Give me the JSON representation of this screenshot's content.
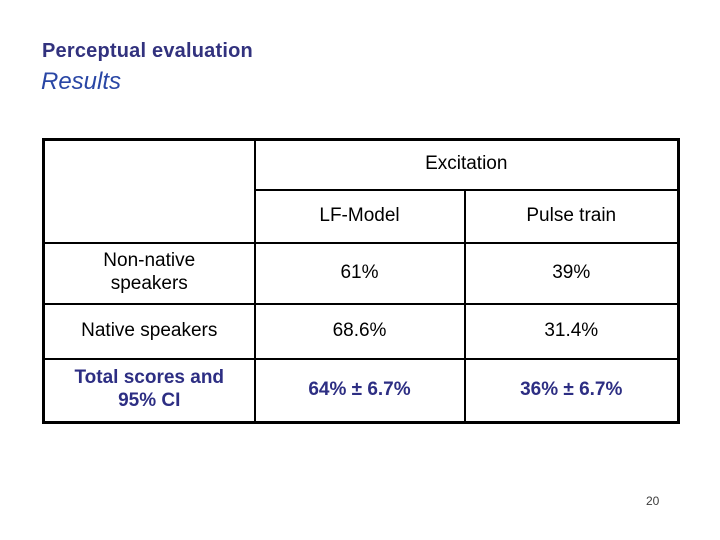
{
  "slide": {
    "kicker": "Perceptual evaluation",
    "title": "Results",
    "page_number": "20"
  },
  "table": {
    "header": {
      "group": "Excitation",
      "columns": [
        "LF-Model",
        "Pulse train"
      ]
    },
    "rows": [
      {
        "label": "Non-native\nspeakers",
        "lf_model": "61%",
        "pulse_train": "39%",
        "emphasis": false
      },
      {
        "label": "Native speakers",
        "lf_model": "68.6%",
        "pulse_train": "31.4%",
        "emphasis": false
      },
      {
        "label": "Total scores and\n95% CI",
        "lf_model": "64% ± 6.7%",
        "pulse_train": "36% ± 6.7%",
        "emphasis": true
      }
    ]
  },
  "colors": {
    "kicker_text": "#32327e",
    "title_text": "#2946a5",
    "emphasis_text": "#2d2e83",
    "table_text": "#000000",
    "table_border": "#000000",
    "background": "#ffffff"
  }
}
